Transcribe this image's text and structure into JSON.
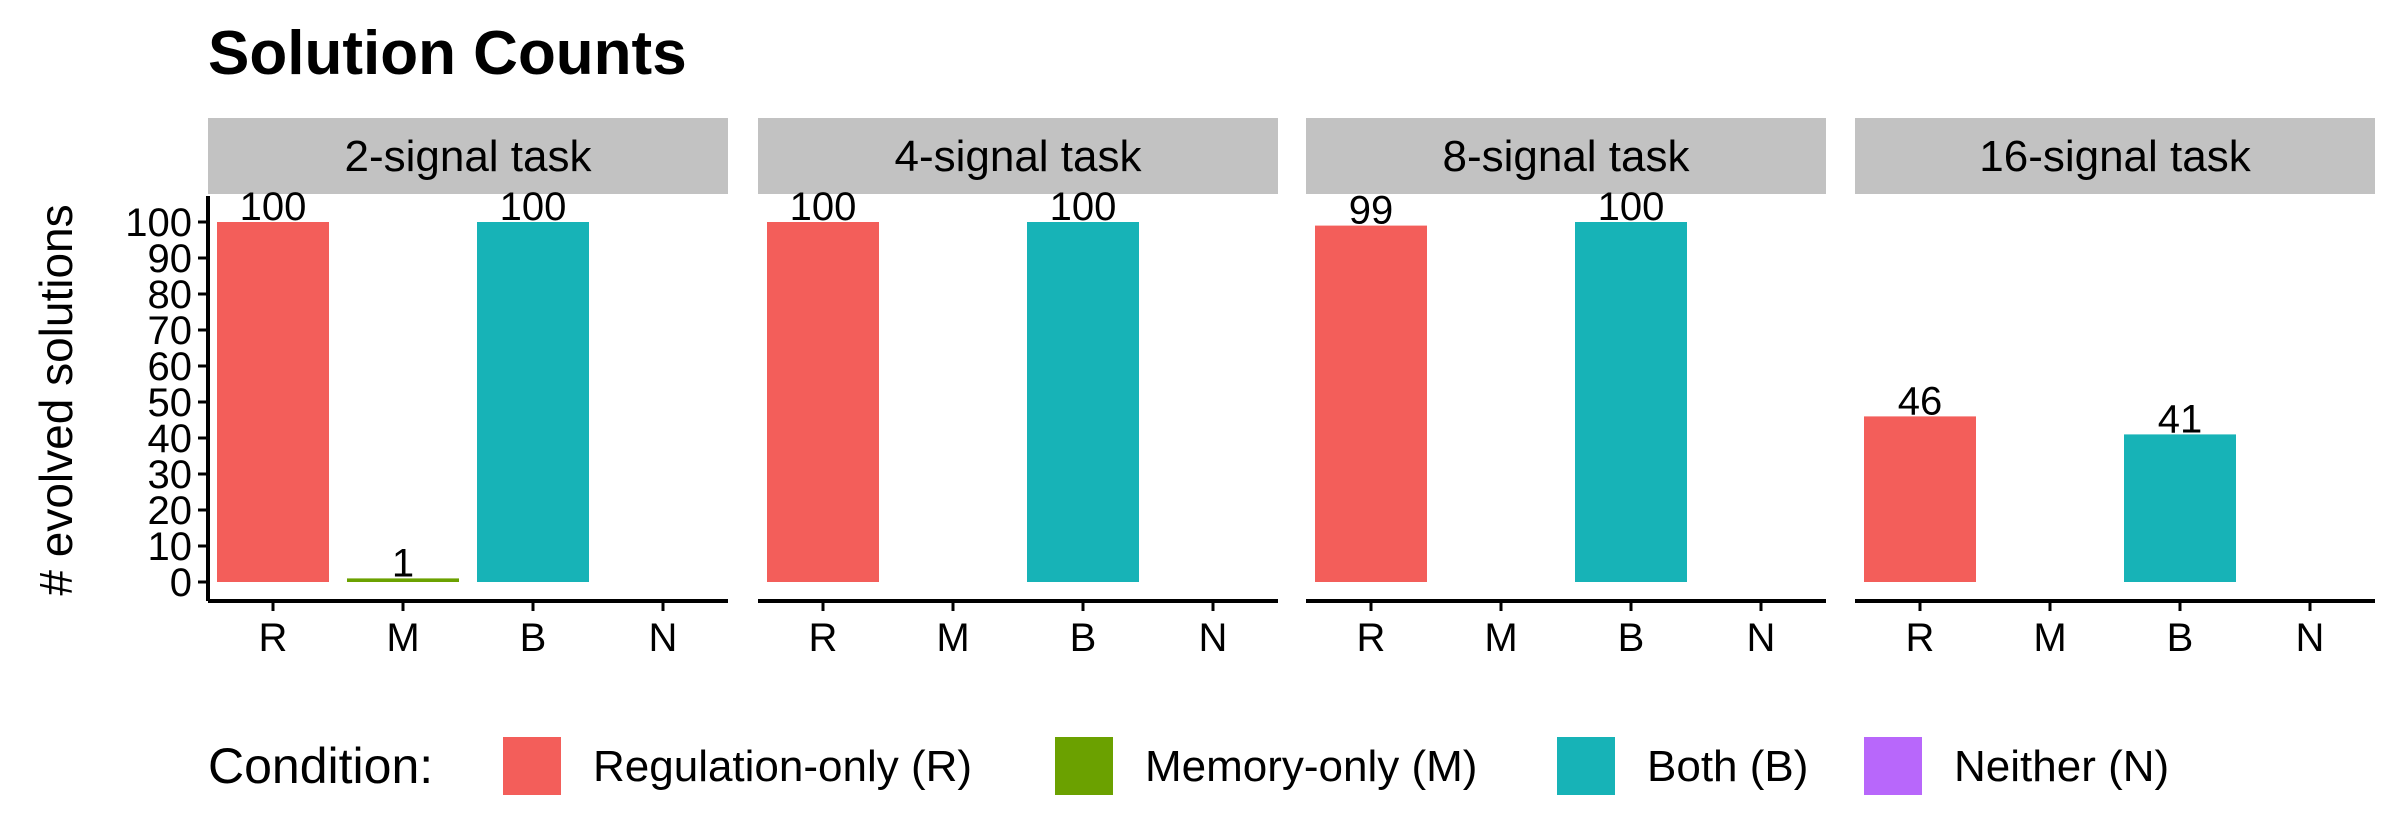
{
  "chart_data": {
    "type": "bar",
    "title": "Solution Counts",
    "ylabel": "# evolved solutions",
    "xlabel": "",
    "ylim": [
      0,
      100
    ],
    "yticks": [
      0,
      10,
      20,
      30,
      40,
      50,
      60,
      70,
      80,
      90,
      100
    ],
    "categories": [
      "R",
      "M",
      "B",
      "N"
    ],
    "grid": false,
    "legend_position": "bottom",
    "legend_title": "Condition:",
    "legend": [
      {
        "key": "R",
        "label": "Regulation-only (R)",
        "color": "#F35E5A"
      },
      {
        "key": "M",
        "label": "Memory-only (M)",
        "color": "#6BA100"
      },
      {
        "key": "B",
        "label": "Both (B)",
        "color": "#17B3B7"
      },
      {
        "key": "N",
        "label": "Neither (N)",
        "color": "#B867FB"
      }
    ],
    "panels": [
      {
        "label": "2-signal task",
        "values": [
          100,
          1,
          100,
          0
        ],
        "data_labels": [
          "100",
          "1",
          "100",
          ""
        ]
      },
      {
        "label": "4-signal task",
        "values": [
          100,
          0,
          100,
          0
        ],
        "data_labels": [
          "100",
          "",
          "100",
          ""
        ]
      },
      {
        "label": "8-signal task",
        "values": [
          99,
          0,
          100,
          0
        ],
        "data_labels": [
          "99",
          "",
          "100",
          ""
        ]
      },
      {
        "label": "16-signal task",
        "values": [
          46,
          0,
          41,
          0
        ],
        "data_labels": [
          "46",
          "",
          "41",
          ""
        ]
      }
    ]
  }
}
